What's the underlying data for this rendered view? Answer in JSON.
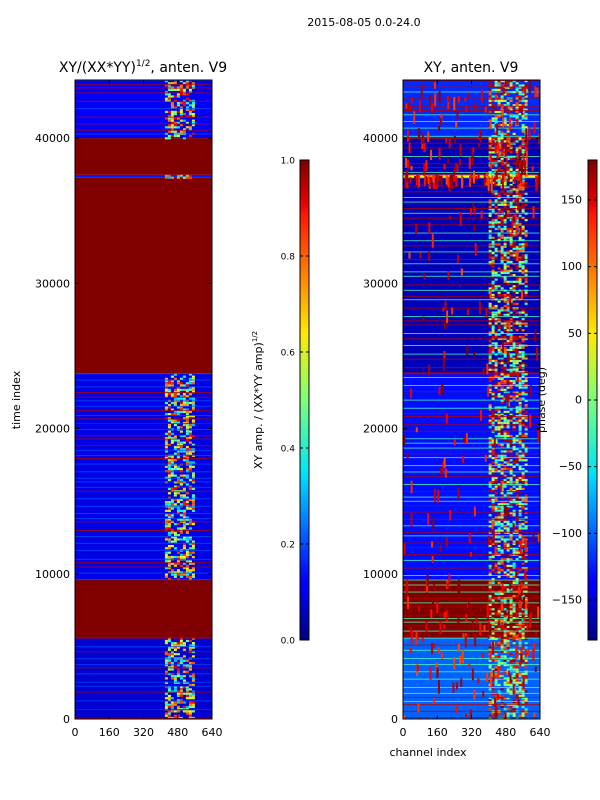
{
  "suptitle": "2015-08-05 0.0-24.0",
  "chart_data": [
    {
      "type": "heatmap",
      "title": "XY/(XX*YY)",
      "title_exponent": "1/2",
      "title_suffix": ", anten. V9",
      "xlabel": "",
      "ylabel": "time index",
      "xlim": [
        0,
        640
      ],
      "ylim": [
        0,
        44000
      ],
      "xticks": [
        0,
        160,
        320,
        480,
        640
      ],
      "yticks": [
        0,
        10000,
        20000,
        30000,
        40000
      ],
      "colorbar": {
        "label": "XY amp. / (XX*YY amp)",
        "label_exponent": "1/2",
        "range": [
          0.0,
          1.0
        ],
        "ticks": [
          0.0,
          0.2,
          0.4,
          0.6,
          0.8,
          1.0
        ],
        "tick_labels": [
          "0.0",
          "0.2",
          "0.4",
          "0.6",
          "0.8",
          "1.0"
        ],
        "colormap": "jet"
      },
      "regions": [
        {
          "y": [
            0,
            5600
          ],
          "value": 0.08
        },
        {
          "y": [
            5600,
            9600
          ],
          "value": 1.0
        },
        {
          "y": [
            9600,
            23800
          ],
          "value": 0.1
        },
        {
          "y": [
            23800,
            37300
          ],
          "value": 1.0
        },
        {
          "y": [
            37300,
            37500
          ],
          "value": 0.15
        },
        {
          "y": [
            37500,
            40000
          ],
          "value": 1.0
        },
        {
          "y": [
            40000,
            44000
          ],
          "value": 0.12
        }
      ],
      "active_band_channels": [
        420,
        560
      ]
    },
    {
      "type": "heatmap",
      "title": "XY, anten. V9",
      "xlabel": "channel index",
      "ylabel": "",
      "xlim": [
        0,
        640
      ],
      "ylim": [
        0,
        44000
      ],
      "xticks": [
        0,
        160,
        320,
        480,
        640
      ],
      "yticks": [
        0,
        10000,
        20000,
        30000,
        40000
      ],
      "colorbar": {
        "label": "phase (deg)",
        "range": [
          -180,
          180
        ],
        "ticks": [
          -150,
          -100,
          -50,
          0,
          50,
          100,
          150
        ],
        "tick_labels": [
          "−150",
          "−100",
          "−50",
          "0",
          "50",
          "100",
          "150"
        ],
        "colormap": "jet"
      },
      "regions": [
        {
          "y": [
            0,
            5600
          ],
          "value": -100
        },
        {
          "y": [
            5600,
            9600
          ],
          "value": 180
        },
        {
          "y": [
            9600,
            23800
          ],
          "value": -130
        },
        {
          "y": [
            23800,
            37300
          ],
          "value": -160
        },
        {
          "y": [
            37300,
            37500
          ],
          "value": 40
        },
        {
          "y": [
            37500,
            40000
          ],
          "value": -160
        },
        {
          "y": [
            40000,
            44000
          ],
          "value": -120
        }
      ],
      "active_band_channels": [
        400,
        580
      ]
    }
  ]
}
